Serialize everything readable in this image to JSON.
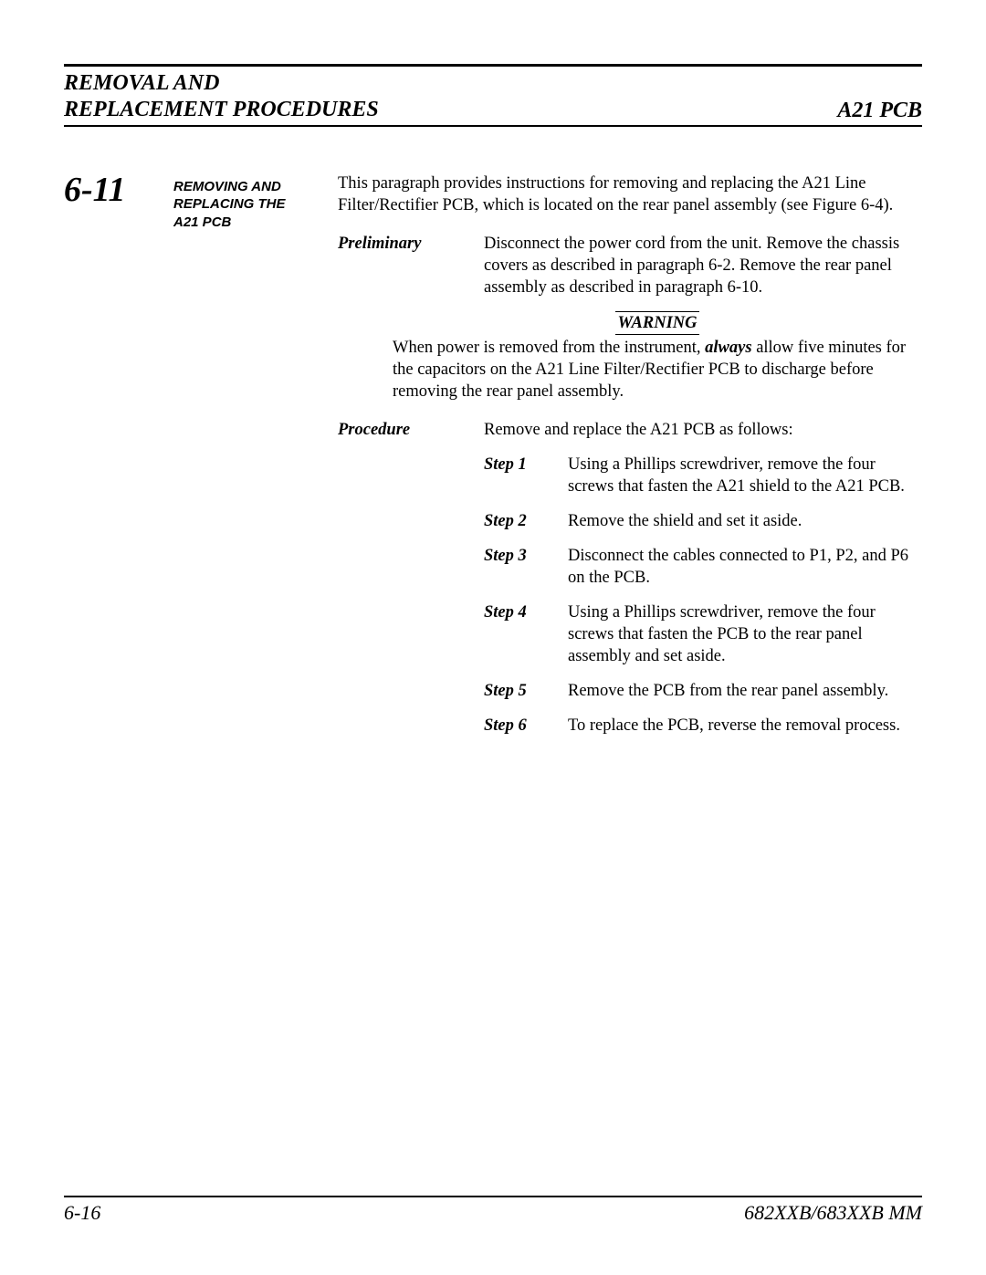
{
  "header": {
    "left_line1": "REMOVAL AND",
    "left_line2": "REPLACEMENT PROCEDURES",
    "right": "A21 PCB"
  },
  "section": {
    "number": "6-11",
    "title_line1": "REMOVING AND",
    "title_line2": "REPLACING THE",
    "title_line3": "A21 PCB"
  },
  "intro": "This paragraph provides instructions for removing and replacing the A21 Line Filter/Rectifier PCB, which is located on the rear panel assembly (see Figure 6-4).",
  "preliminary": {
    "label": "Preliminary",
    "text": "Disconnect the power cord from the unit. Remove the chassis covers as described in paragraph 6-2. Remove the rear panel assembly as described in paragraph 6-10."
  },
  "warning": {
    "heading": "WARNING",
    "pre": "When power is removed from the instrument, ",
    "emph": "always",
    "post": " allow five minutes for the capacitors on the A21 Line Filter/Rectifier PCB to discharge before removing the rear panel assembly."
  },
  "procedure": {
    "label": "Procedure",
    "intro": "Remove and replace the A21 PCB as follows:"
  },
  "steps": [
    {
      "label": "Step 1",
      "text": "Using a Phillips screwdriver, remove the four screws that fasten the A21 shield to the A21 PCB."
    },
    {
      "label": "Step 2",
      "text": "Remove the shield and set it aside."
    },
    {
      "label": "Step 3",
      "text": "Disconnect the cables connected to P1, P2, and P6 on the PCB."
    },
    {
      "label": "Step 4",
      "text": "Using a Phillips screwdriver, remove the four screws that fasten the PCB to the rear panel assembly and set aside."
    },
    {
      "label": "Step 5",
      "text": "Remove the PCB from the rear panel assembly."
    },
    {
      "label": "Step 6",
      "text": "To replace the PCB, reverse the removal process."
    }
  ],
  "footer": {
    "left": "6-16",
    "right": "682XXB/683XXB MM"
  }
}
